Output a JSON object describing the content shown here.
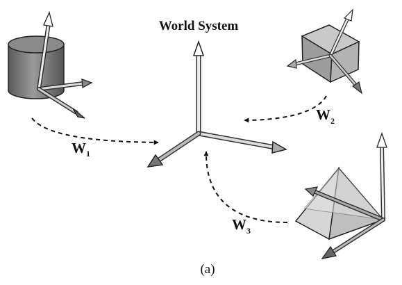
{
  "title": "World System",
  "transforms": [
    {
      "letter": "W",
      "sub": "1"
    },
    {
      "letter": "W",
      "sub": "2"
    },
    {
      "letter": "W",
      "sub": "3"
    }
  ],
  "caption": "(a)"
}
